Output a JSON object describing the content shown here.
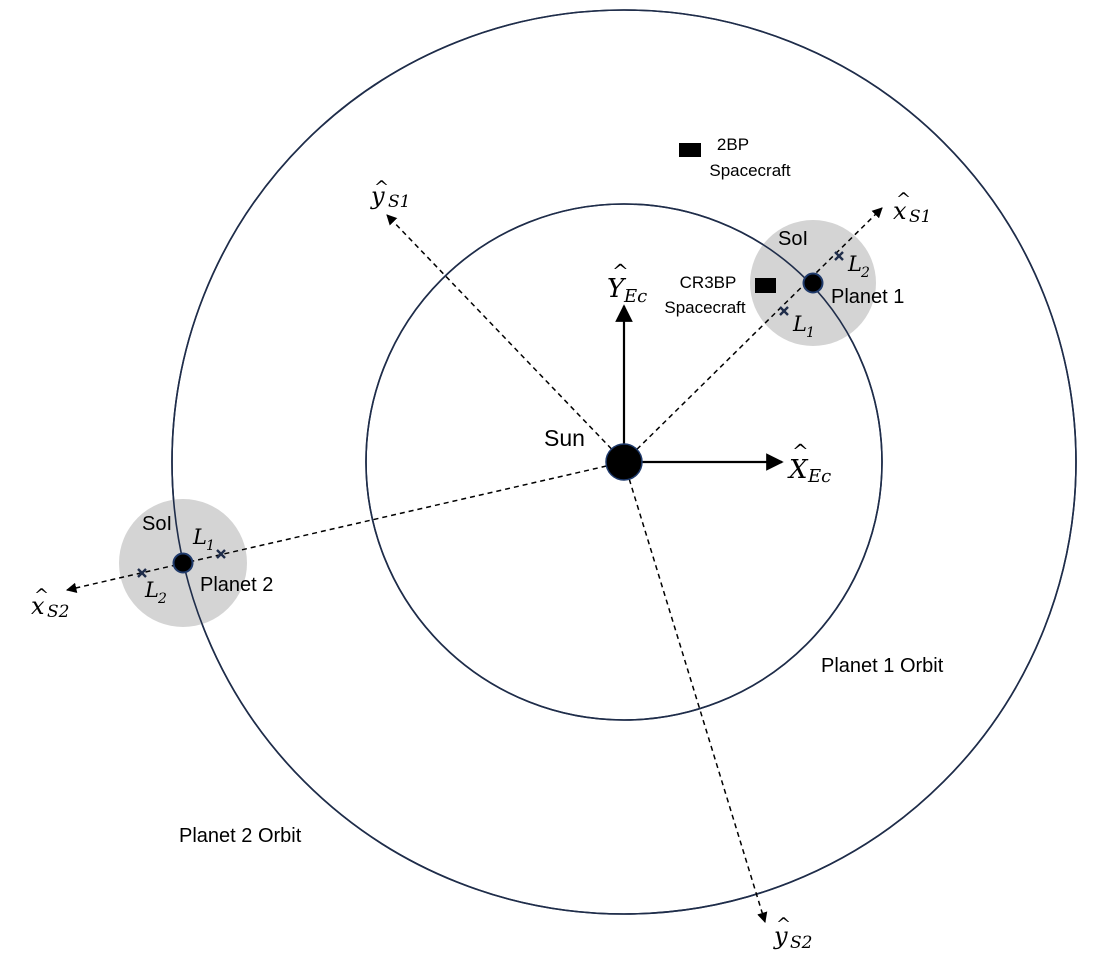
{
  "labels": {
    "sun": "Sun",
    "planet1": "Planet 1",
    "planet2": "Planet 2",
    "planet1_orbit": "Planet 1 Orbit",
    "planet2_orbit": "Planet 2 Orbit",
    "soi1": "SoI",
    "soi2": "SoI",
    "spacecraft_2bp_line1": "2BP",
    "spacecraft_2bp_line2": "Spacecraft",
    "spacecraft_cr3bp_line1": "CR3BP",
    "spacecraft_cr3bp_line2": "Spacecraft"
  },
  "axes": {
    "X_Ec": {
      "base": "X",
      "sub": "Ec"
    },
    "Y_Ec": {
      "base": "Y",
      "sub": "Ec"
    },
    "x_S1": {
      "base": "x",
      "sub": "S1"
    },
    "y_S1": {
      "base": "y",
      "sub": "S1"
    },
    "x_S2": {
      "base": "x",
      "sub": "S2"
    },
    "y_S2": {
      "base": "y",
      "sub": "S2"
    }
  },
  "lagrange": {
    "p1_L1": {
      "base": "L",
      "sub": "1"
    },
    "p1_L2": {
      "base": "L",
      "sub": "2"
    },
    "p2_L1": {
      "base": "L",
      "sub": "1"
    },
    "p2_L2": {
      "base": "L",
      "sub": "2"
    }
  },
  "colors": {
    "orbit": "#1f2d4a",
    "soi_fill": "#d4d4d4",
    "body": "#000000",
    "body_stroke": "#1f3a6b",
    "lagrange_marker": "#1f2d4a"
  }
}
